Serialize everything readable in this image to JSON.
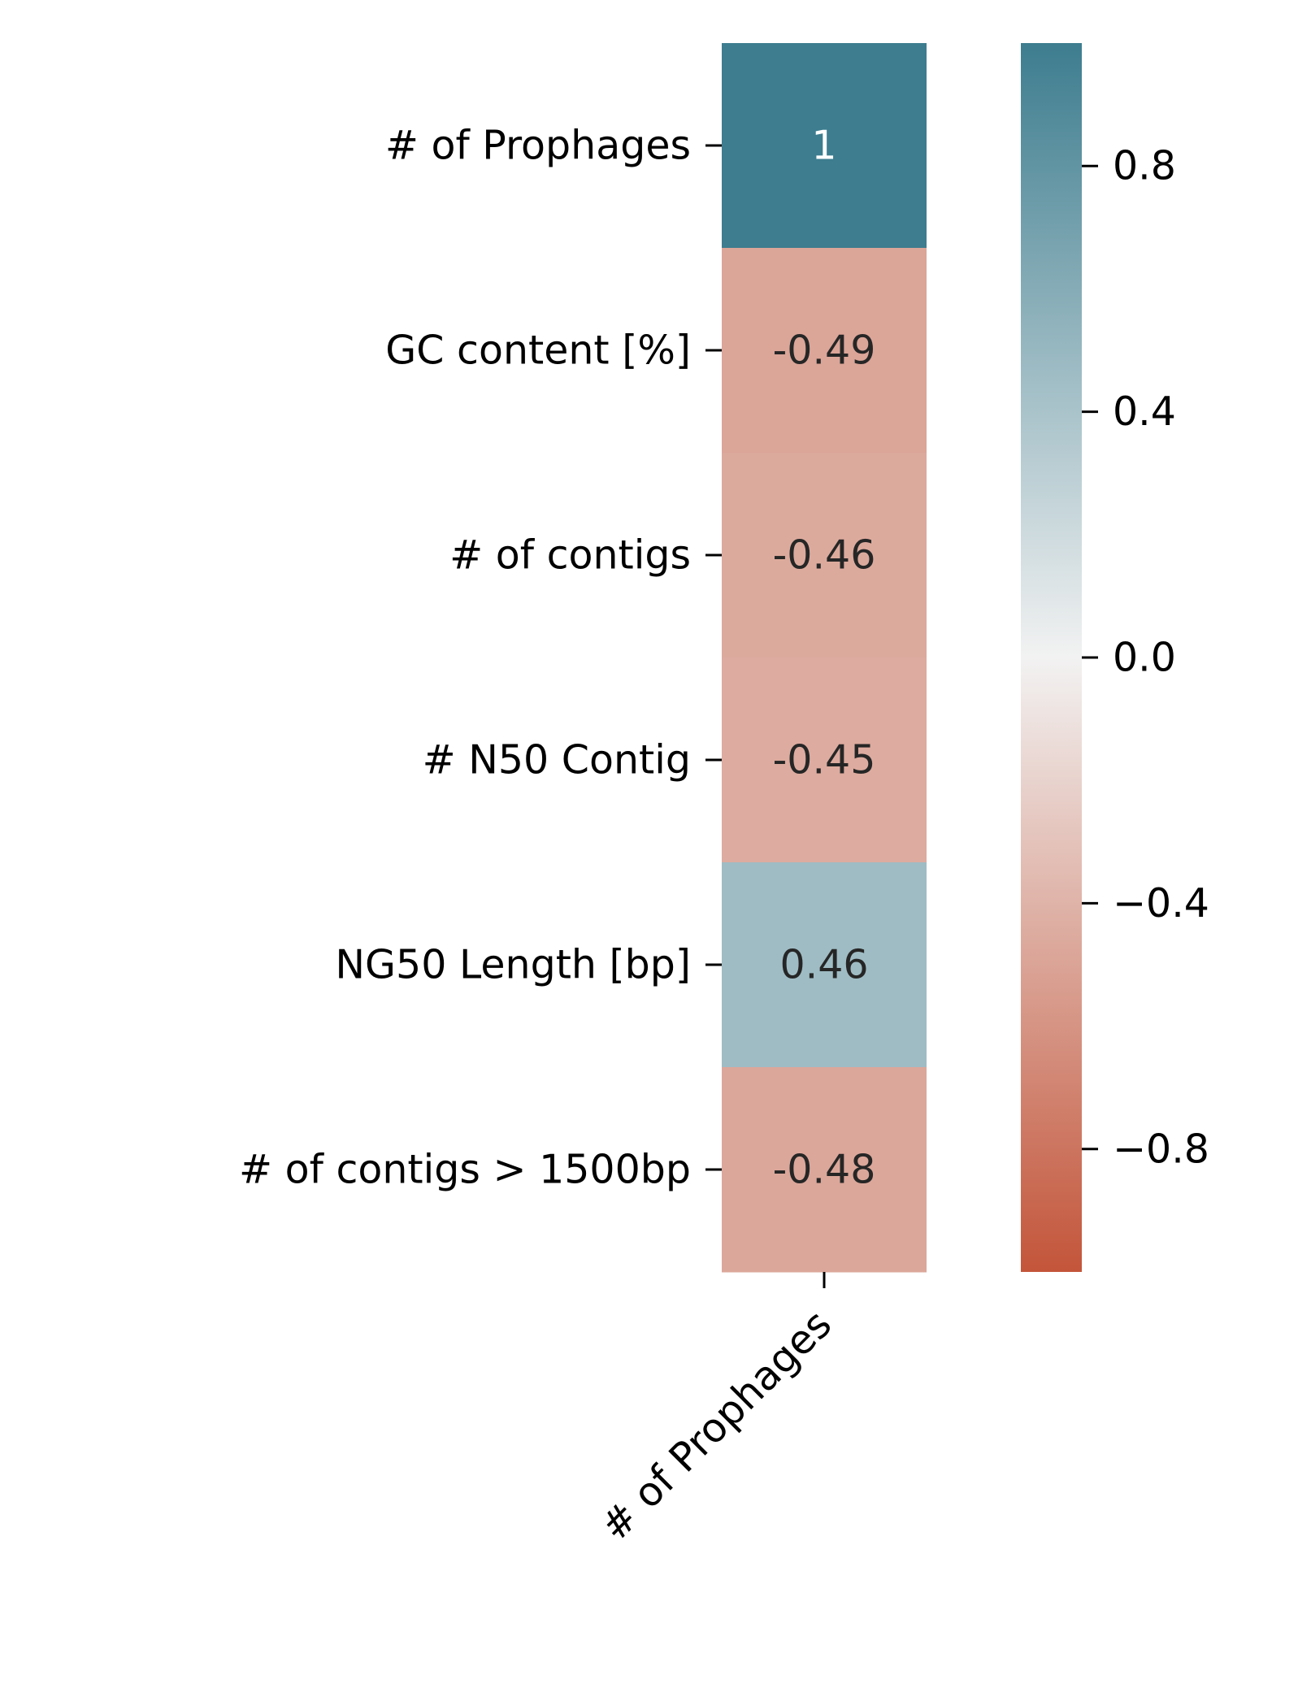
{
  "chart_data": {
    "type": "heatmap",
    "x_categories": [
      "# of Prophages"
    ],
    "y_categories": [
      "# of Prophages",
      "GC content [%]",
      "# of contigs",
      "# N50 Contig",
      "NG50 Length [bp]",
      "# of contigs > 1500bp"
    ],
    "values": [
      [
        1
      ],
      [
        -0.49
      ],
      [
        -0.46
      ],
      [
        -0.45
      ],
      [
        0.46
      ],
      [
        -0.48
      ]
    ],
    "cell_labels": [
      "1",
      "-0.49",
      "-0.46",
      "-0.45",
      "0.46",
      "-0.48"
    ],
    "colorbar": {
      "vmin": -1,
      "vmax": 1,
      "ticks": [
        0.8,
        0.4,
        0.0,
        -0.4,
        -0.8
      ],
      "tick_labels": [
        "0.8",
        "0.4",
        "0.0",
        "−0.4",
        "−0.8"
      ],
      "colors": {
        "negative": "#c3553a",
        "center": "#f2f2f2",
        "positive": "#3d7d8f"
      }
    }
  }
}
